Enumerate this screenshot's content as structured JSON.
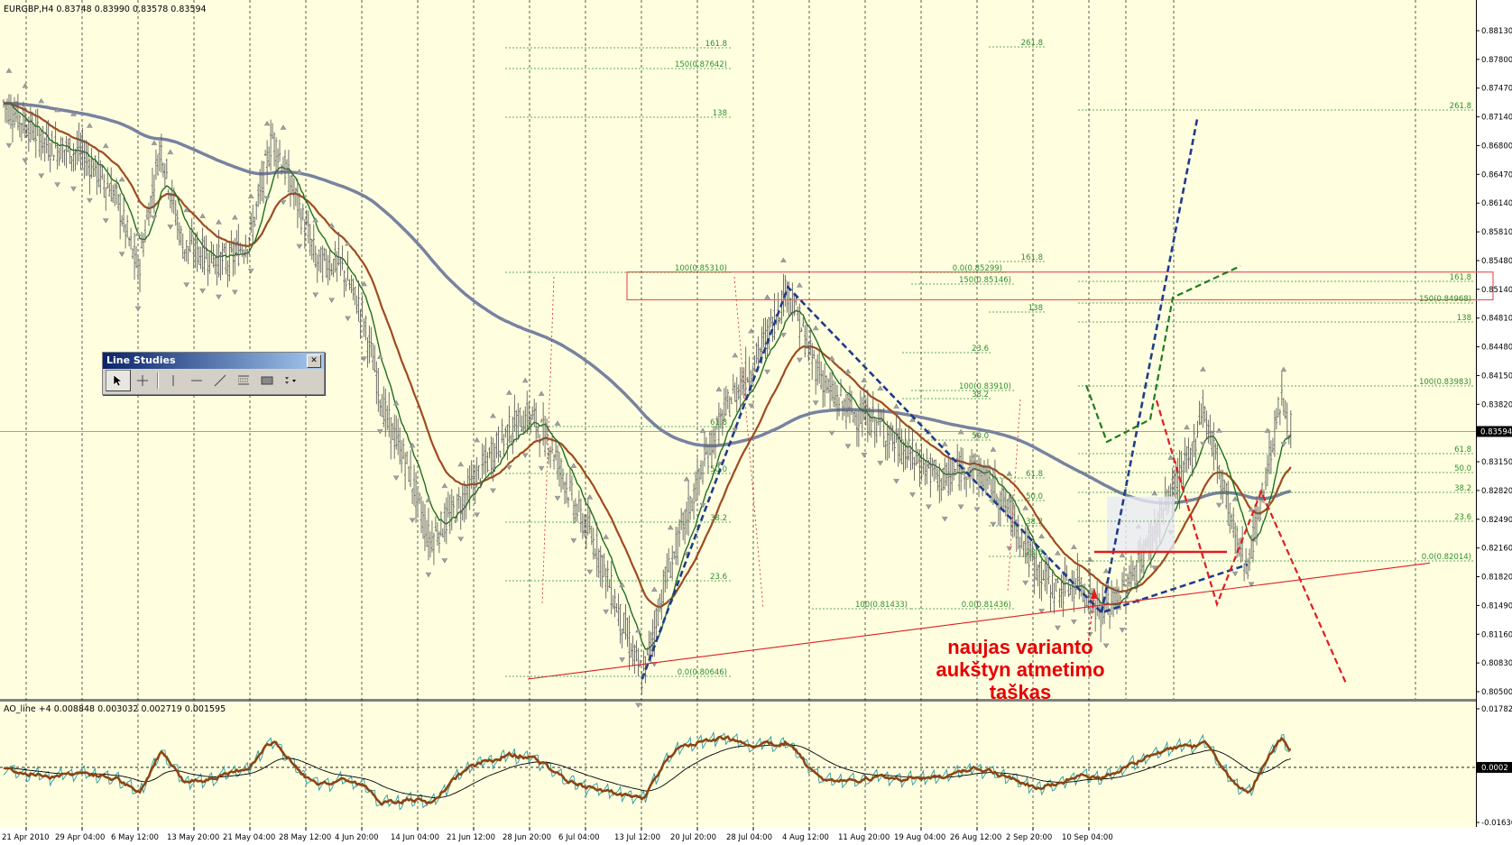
{
  "window": {
    "symbol_info": "EURGBP,H4  0.83748 0.83990 0.83578 0.83594",
    "indicator_info": "AO_line +4 0.008848 0.003032 0.002719 0.001595"
  },
  "colors": {
    "background": "#ffffe0",
    "grid": "#000000",
    "wma_short": "#1e6e1e",
    "ma_mid": "#a04a1e",
    "ma_long": "#7882a0",
    "blue_dash": "#1e3c8c",
    "red_dash": "#e01e1e",
    "green_dash": "#1e7c1e",
    "fib": "#2f8f2f",
    "zone": "#e85a5a",
    "ao_thick": "#8b4513",
    "ao_thin": "#2a9aa0",
    "ao_signal": "#000000"
  },
  "toolbar": {
    "title": "Line Studies",
    "close_label": "✕",
    "tools": [
      "cursor-icon",
      "crosshair-icon",
      "vertical-line-icon",
      "horizontal-line-icon",
      "trendline-icon",
      "fibonacci-icon",
      "rectangle-icon",
      "more-tools-icon"
    ]
  },
  "annotation": {
    "line1": "naujas varianto",
    "line2": "aukštyn atmetimo",
    "line3": "taškas"
  },
  "chart_data": [
    {
      "type": "candlestick",
      "symbol": "EURGBP",
      "timeframe": "H4",
      "ylim": [
        0.805,
        0.8836
      ],
      "y_ticks": [
        "0.88130",
        "0.87800",
        "0.87470",
        "0.87140",
        "0.86800",
        "0.86470",
        "0.86140",
        "0.85810",
        "0.85480",
        "0.85140",
        "0.84810",
        "0.84480",
        "0.84150",
        "0.83820",
        "0.83480",
        "0.83150",
        "0.82820",
        "0.82490",
        "0.82160",
        "0.81820",
        "0.81490",
        "0.81160",
        "0.80830",
        "0.80500"
      ],
      "current_price": "0.83594",
      "x_ticks": [
        "21 Apr 2010",
        "29 Apr 04:00",
        "6 May 12:00",
        "13 May 20:00",
        "21 May 04:00",
        "28 May 12:00",
        "4 Jun 20:00",
        "14 Jun 04:00",
        "21 Jun 12:00",
        "28 Jun 20:00",
        "6 Jul 04:00",
        "13 Jul 12:00",
        "20 Jul 20:00",
        "28 Jul 04:00",
        "4 Aug 12:00",
        "11 Aug 20:00",
        "19 Aug 04:00",
        "26 Aug 12:00",
        "2 Sep 20:00",
        "10 Sep 04:00"
      ],
      "price_path": [
        {
          "t": 0,
          "p": 0.875
        },
        {
          "t": 4,
          "p": 0.87
        },
        {
          "t": 7,
          "p": 0.869
        },
        {
          "t": 10,
          "p": 0.864
        },
        {
          "t": 12,
          "p": 0.855
        },
        {
          "t": 14,
          "p": 0.87
        },
        {
          "t": 16,
          "p": 0.858
        },
        {
          "t": 18,
          "p": 0.857
        },
        {
          "t": 20,
          "p": 0.856
        },
        {
          "t": 22,
          "p": 0.859
        },
        {
          "t": 24,
          "p": 0.871
        },
        {
          "t": 26,
          "p": 0.864
        },
        {
          "t": 28,
          "p": 0.856
        },
        {
          "t": 30,
          "p": 0.856
        },
        {
          "t": 32,
          "p": 0.85
        },
        {
          "t": 34,
          "p": 0.838
        },
        {
          "t": 36,
          "p": 0.832
        },
        {
          "t": 38,
          "p": 0.823
        },
        {
          "t": 40,
          "p": 0.826
        },
        {
          "t": 42,
          "p": 0.83
        },
        {
          "t": 45,
          "p": 0.836
        },
        {
          "t": 47,
          "p": 0.838
        },
        {
          "t": 49,
          "p": 0.834
        },
        {
          "t": 51,
          "p": 0.827
        },
        {
          "t": 53,
          "p": 0.822
        },
        {
          "t": 55,
          "p": 0.814
        },
        {
          "t": 57,
          "p": 0.8065
        },
        {
          "t": 59,
          "p": 0.818
        },
        {
          "t": 61,
          "p": 0.826
        },
        {
          "t": 63,
          "p": 0.834
        },
        {
          "t": 65,
          "p": 0.84
        },
        {
          "t": 67,
          "p": 0.844
        },
        {
          "t": 69,
          "p": 0.85
        },
        {
          "t": 70,
          "p": 0.8531
        },
        {
          "t": 72,
          "p": 0.845
        },
        {
          "t": 74,
          "p": 0.84
        },
        {
          "t": 76,
          "p": 0.838
        },
        {
          "t": 78,
          "p": 0.837
        },
        {
          "t": 80,
          "p": 0.834
        },
        {
          "t": 82,
          "p": 0.832
        },
        {
          "t": 84,
          "p": 0.83
        },
        {
          "t": 86,
          "p": 0.832
        },
        {
          "t": 88,
          "p": 0.83
        },
        {
          "t": 90,
          "p": 0.826
        },
        {
          "t": 92,
          "p": 0.82
        },
        {
          "t": 94,
          "p": 0.817
        },
        {
          "t": 96,
          "p": 0.818
        },
        {
          "t": 98,
          "p": 0.8144
        },
        {
          "t": 100,
          "p": 0.817
        },
        {
          "t": 102,
          "p": 0.822
        },
        {
          "t": 104,
          "p": 0.828
        },
        {
          "t": 106,
          "p": 0.833
        },
        {
          "t": 107,
          "p": 0.8391
        },
        {
          "t": 109,
          "p": 0.829
        },
        {
          "t": 110,
          "p": 0.823
        },
        {
          "t": 111,
          "p": 0.8201
        },
        {
          "t": 112,
          "p": 0.826
        },
        {
          "t": 113,
          "p": 0.833
        },
        {
          "t": 114,
          "p": 0.8398
        },
        {
          "t": 115,
          "p": 0.8359
        }
      ],
      "fibonacci_labels": [
        "161.8",
        "150(0.87642)",
        "138",
        "100(0.85310)",
        "61.8",
        "50.0",
        "38.2",
        "23.6",
        "0.0(0.80646)",
        "261.8",
        "0.0(0.85299)",
        "150(0.85146)",
        "100(0.83910)",
        "0.0(0.81436)",
        "100(0.81433)",
        "261.8",
        "161.8",
        "150(0.84968)",
        "138",
        "100(0.83983)",
        "61.8",
        "50.0",
        "38.2",
        "23.6",
        "0.0(0.82014)",
        "161.8",
        "138",
        "23.6",
        "50.0",
        "38.2",
        "61.8",
        "50.0",
        "38.2",
        "23.6"
      ],
      "ao_panel": {
        "label": "AO_line +4 0.008848 0.003032 0.002719 0.001595",
        "y_ticks": [
          "0.01782",
          "0.0002",
          "-0.01636"
        ],
        "ylim": [
          -0.01636,
          0.01782
        ]
      }
    }
  ]
}
